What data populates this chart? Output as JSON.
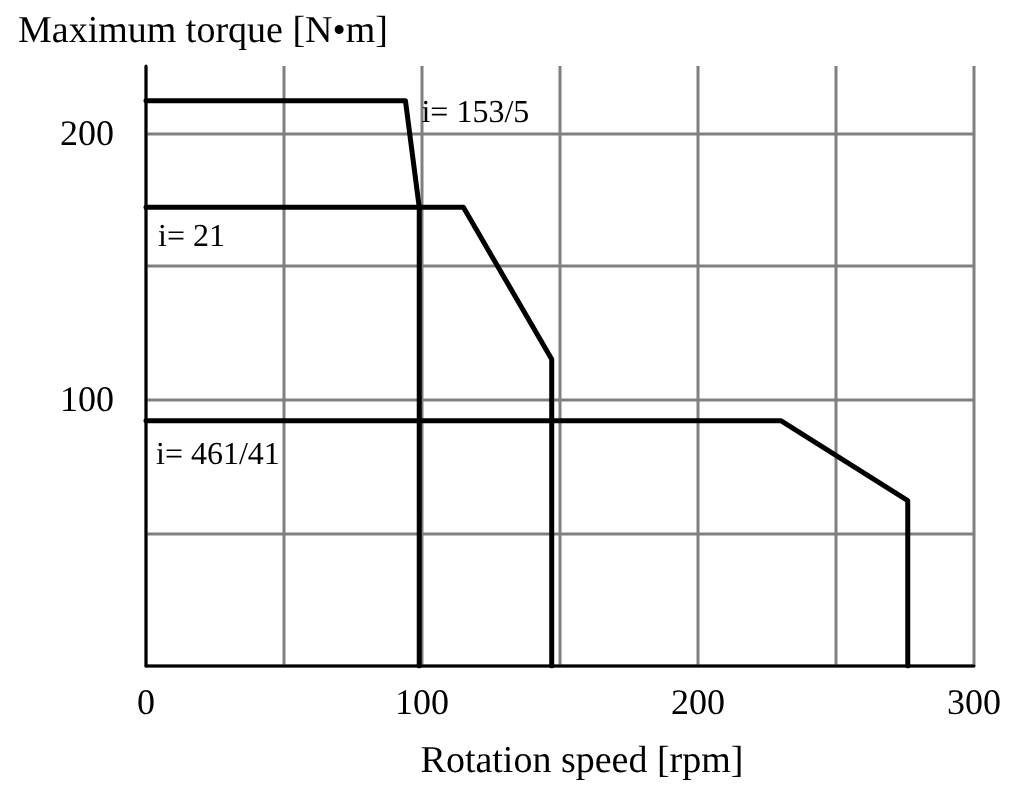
{
  "chart_data": {
    "type": "line",
    "xlabel": "Rotation speed [rpm]",
    "ylabel": "Maximum torque [N•m]",
    "xlim": [
      0,
      300
    ],
    "xticks": [
      0,
      {
        "value": 50,
        "label": null
      },
      100,
      {
        "value": 150,
        "label": null
      },
      200,
      {
        "value": 250,
        "label": null
      },
      300
    ],
    "ylim": [
      0,
      225
    ],
    "yticks": [
      {
        "value": 0,
        "label": null
      },
      {
        "value": 50,
        "label": null
      },
      100,
      {
        "value": 150,
        "label": null
      },
      200
    ],
    "grid": true,
    "legend": false,
    "marker": "none",
    "line_style": "solid",
    "series": [
      {
        "name": "i= 153/5",
        "color": "#000000",
        "x": [
          0,
          94,
          99,
          99
        ],
        "values": [
          212,
          212,
          172,
          0
        ]
      },
      {
        "name": "i= 21",
        "color": "#000000",
        "x": [
          0,
          115,
          147,
          147
        ],
        "values": [
          172,
          172,
          115,
          0
        ]
      },
      {
        "name": "i= 461/41",
        "color": "#000000",
        "x": [
          0,
          230,
          276,
          276
        ],
        "values": [
          92,
          92,
          62,
          0
        ]
      }
    ]
  }
}
